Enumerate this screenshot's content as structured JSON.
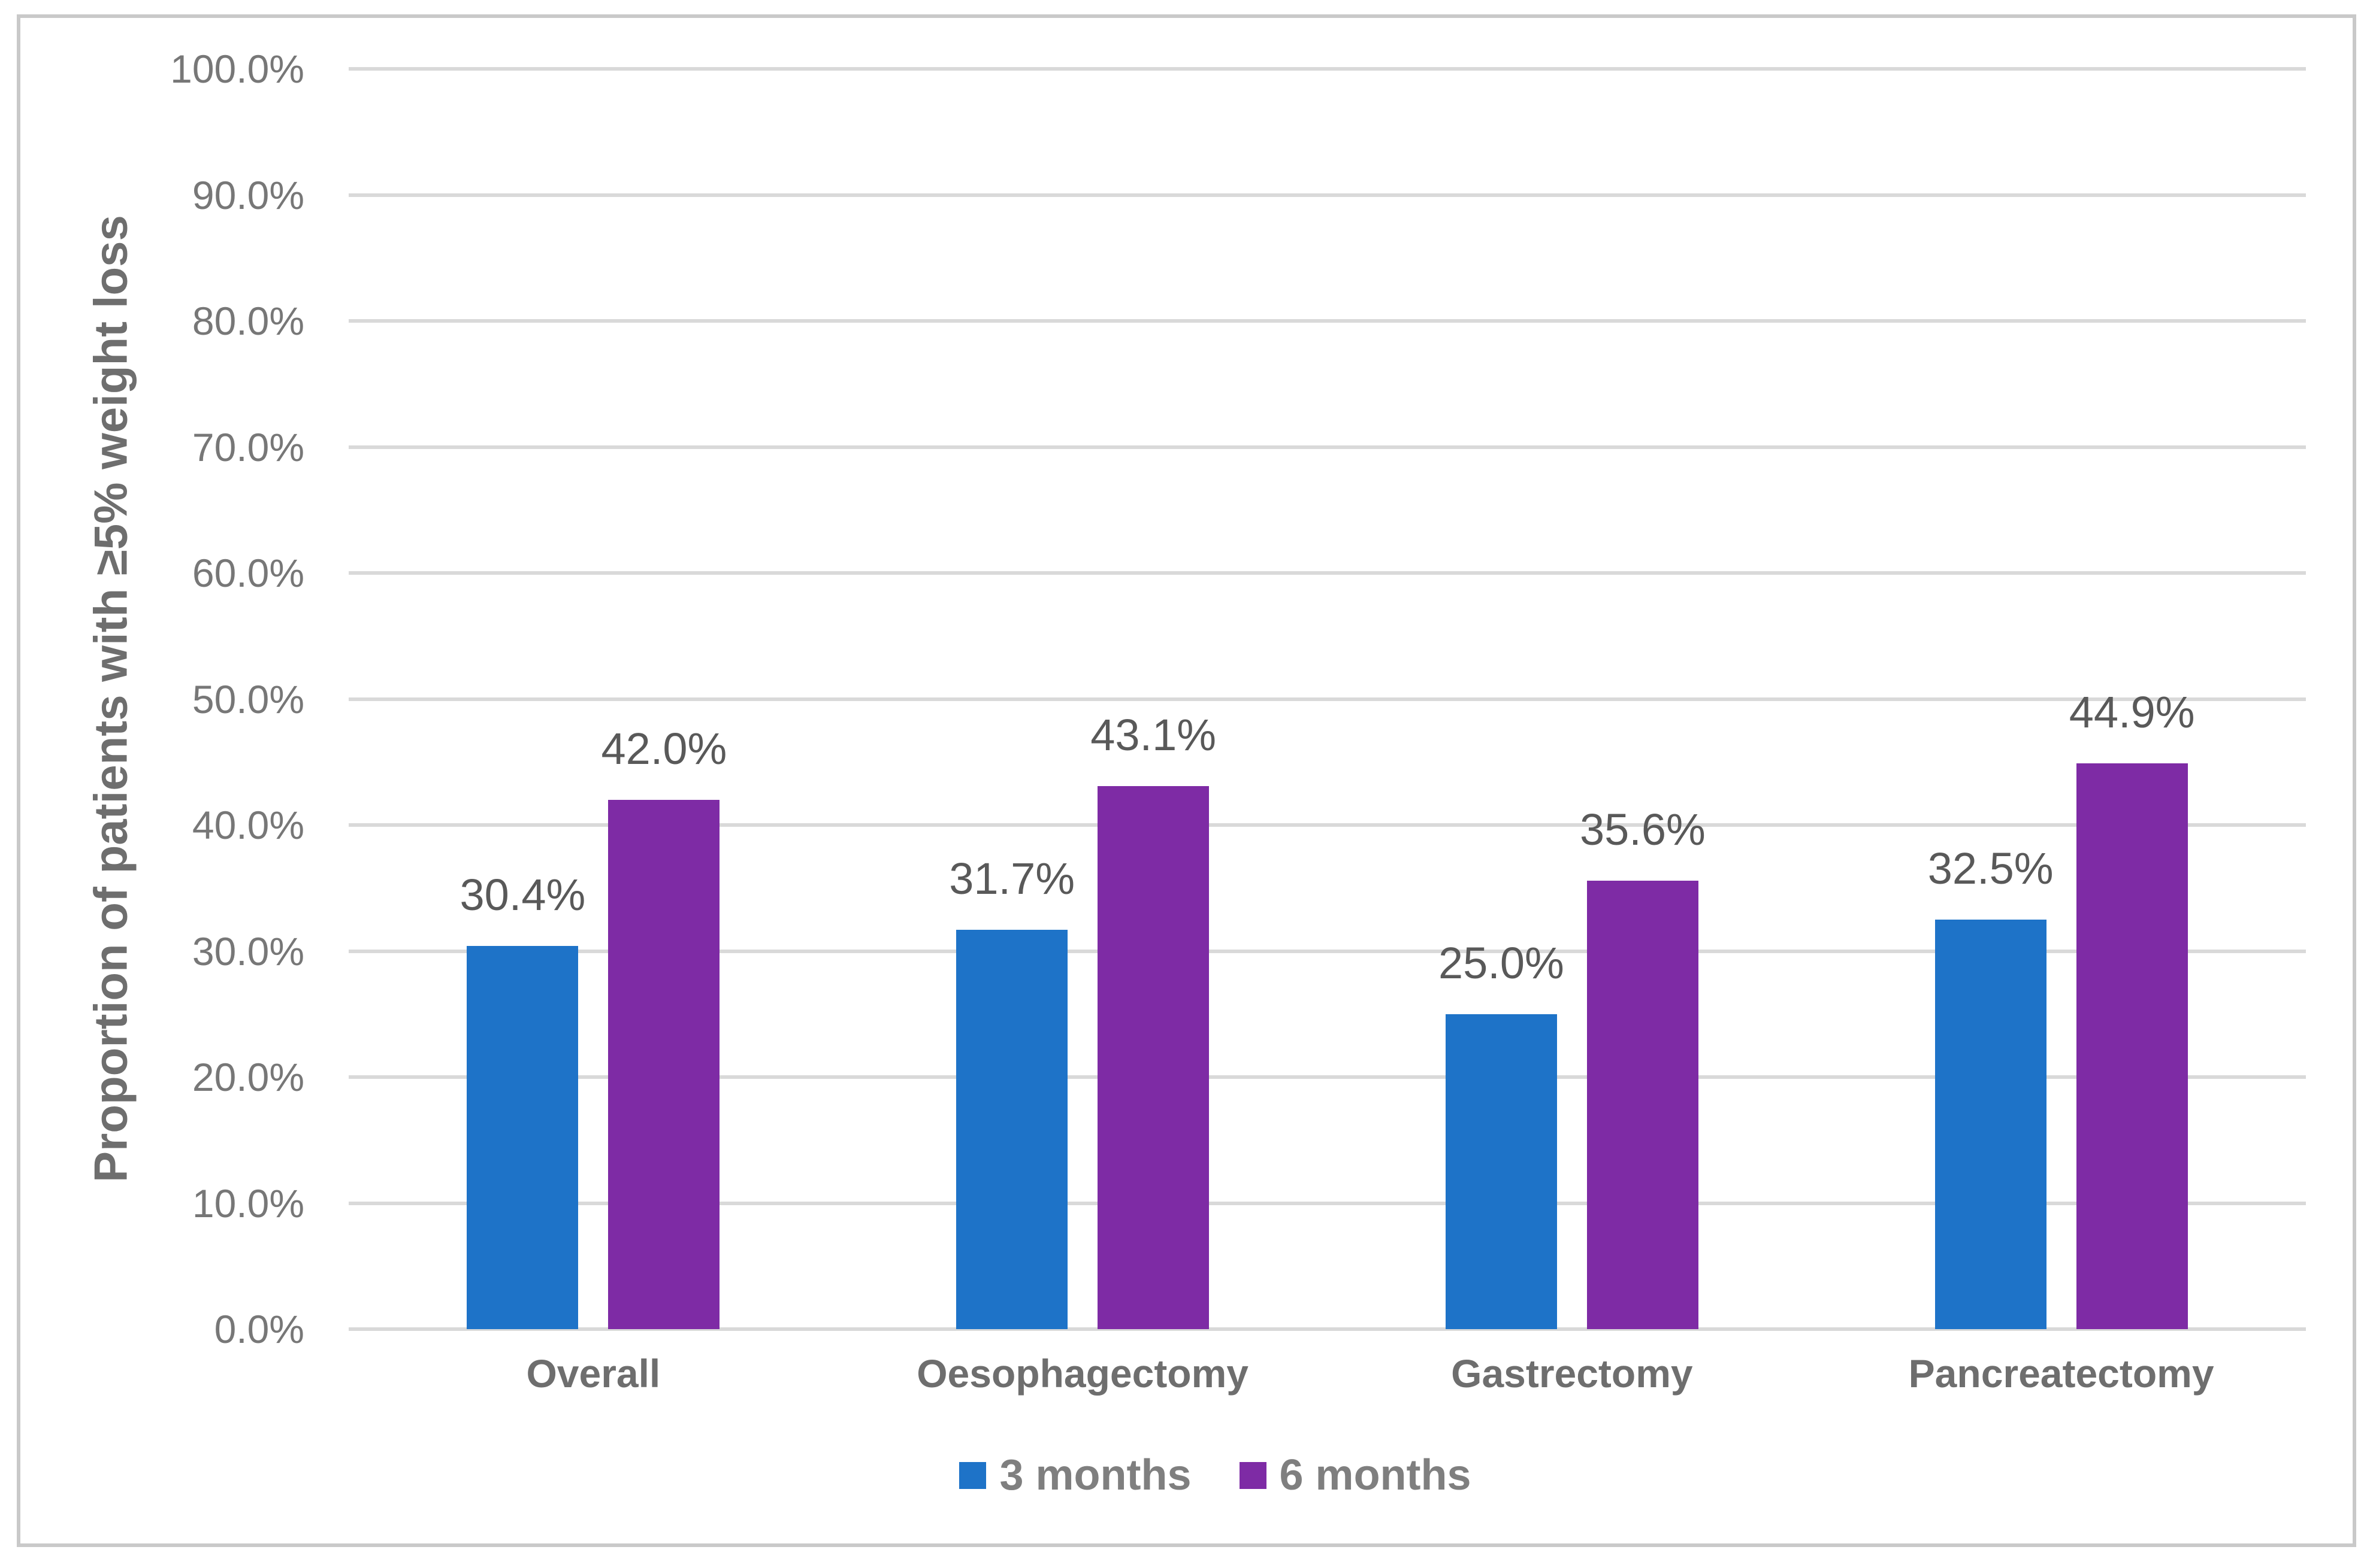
{
  "chart_data": {
    "type": "bar",
    "title": "",
    "xlabel": "",
    "ylabel": "Proportion of patients with ≥5% weight loss",
    "categories": [
      "Overall",
      "Oesophagectomy",
      "Gastrectomy",
      "Pancreatectomy"
    ],
    "series": [
      {
        "name": "3 months",
        "color": "#1E73C8",
        "values": [
          30.4,
          31.7,
          25.0,
          32.5
        ],
        "data_labels": [
          "30.4%",
          "31.7%",
          "25.0%",
          "32.5%"
        ]
      },
      {
        "name": "6 months",
        "color": "#7E2BA5",
        "values": [
          42.0,
          43.1,
          35.6,
          44.9
        ],
        "data_labels": [
          "42.0%",
          "43.1%",
          "35.6%",
          "44.9%"
        ]
      }
    ],
    "ylim": [
      0,
      100
    ],
    "y_ticks": [
      "0.0%",
      "10.0%",
      "20.0%",
      "30.0%",
      "40.0%",
      "50.0%",
      "60.0%",
      "70.0%",
      "80.0%",
      "90.0%",
      "100.0%"
    ],
    "grid": true,
    "legend_position": "bottom-center"
  },
  "colors": {
    "series_3_months": "#1E73C8",
    "series_6_months": "#7E2BA5",
    "gridline": "#D9D9D9",
    "axis_line": "#D9D9D9",
    "tick_label_text": "#777777",
    "data_label_text": "#595959",
    "category_label_text": "#6E6E6E",
    "legend_text": "#7F7F7F",
    "y_axis_title_text": "#6E6E6E",
    "frame_border": "#C9C9C9",
    "background": "#FFFFFF"
  }
}
